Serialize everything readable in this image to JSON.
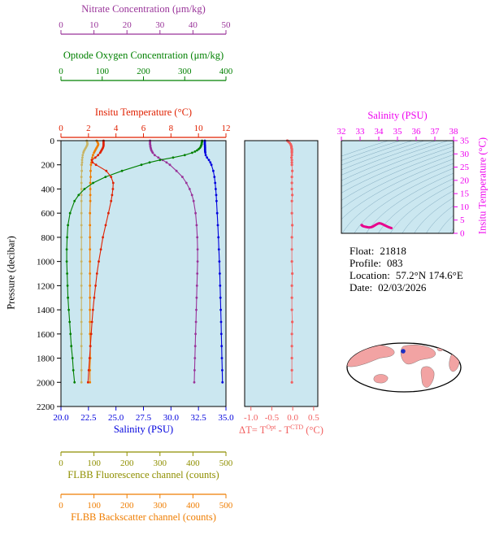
{
  "info": {
    "float_label": "Float:",
    "float_value": "21818",
    "profile_label": "Profile:",
    "profile_value": "083",
    "location_label": "Location:",
    "location_value": "57.2°N  174.6°E",
    "date_label": "Date:",
    "date_value": "02/03/2026"
  },
  "colors": {
    "nitrate": "#993399",
    "oxygen": "#008000",
    "temperature": "#e02000",
    "salinity": "#0000dd",
    "pressure": "#000000",
    "delta_t": "#f26060",
    "ts_axis": "#ee00ee",
    "ts_curve": "#e8008c",
    "fluor_axis": "#8f8f00",
    "fluor_curve": "#c8b464",
    "backscatter": "#ef7d00",
    "plot_bg": "#cbe7f0",
    "frame": "#000000",
    "isopycnal": "#7fa8bd",
    "map_land": "#f2a3a3",
    "map_coast": "#555555",
    "map_ocean": "#ffffff",
    "marker": "#1a2fc4"
  },
  "chart_data": [
    {
      "id": "profiles",
      "type": "line",
      "ylabel": "Pressure (decibar)",
      "ylim": [
        0,
        2200
      ],
      "yticks": [
        0,
        200,
        400,
        600,
        800,
        1000,
        1200,
        1400,
        1600,
        1800,
        2000,
        2200
      ],
      "pressure_levels": [
        0,
        10,
        20,
        30,
        40,
        50,
        60,
        70,
        80,
        90,
        100,
        120,
        140,
        160,
        180,
        200,
        250,
        300,
        350,
        400,
        450,
        500,
        600,
        700,
        800,
        900,
        1000,
        1100,
        1200,
        1300,
        1400,
        1500,
        1600,
        1700,
        1800,
        1900,
        2000
      ],
      "series": [
        {
          "name": "salinity",
          "title": "Salinity (PSU)",
          "xlim": [
            20.0,
            35.0
          ],
          "xticks": [
            "20.0",
            "22.5",
            "25.0",
            "27.5",
            "30.0",
            "32.5",
            "35.0"
          ],
          "values": [
            33.08,
            33.08,
            33.08,
            33.08,
            33.09,
            33.09,
            33.1,
            33.1,
            33.1,
            33.11,
            33.12,
            33.16,
            33.28,
            33.45,
            33.58,
            33.68,
            33.85,
            33.95,
            34.02,
            34.07,
            34.11,
            34.14,
            34.2,
            34.26,
            34.31,
            34.36,
            34.4,
            34.44,
            34.47,
            34.5,
            34.53,
            34.56,
            34.58,
            34.61,
            34.63,
            34.66,
            34.68
          ]
        },
        {
          "name": "temperature",
          "title": "Insitu Temperature (°C)",
          "xlim": [
            0,
            12
          ],
          "xticks": [
            0,
            2,
            4,
            6,
            8,
            10,
            12
          ],
          "values": [
            3.1,
            3.1,
            3.1,
            3.1,
            3.1,
            3.08,
            3.05,
            3.0,
            2.95,
            2.9,
            2.85,
            2.7,
            2.5,
            2.25,
            2.3,
            2.55,
            3.3,
            3.65,
            3.8,
            3.78,
            3.72,
            3.65,
            3.45,
            3.25,
            3.05,
            2.9,
            2.75,
            2.62,
            2.52,
            2.42,
            2.33,
            2.26,
            2.2,
            2.14,
            2.08,
            2.02,
            1.97
          ]
        },
        {
          "name": "oxygen",
          "title": "Optode Oxygen Concentration (μm/kg)",
          "xlim": [
            0,
            400
          ],
          "xticks": [
            0,
            100,
            200,
            300,
            400
          ],
          "values": [
            342,
            342,
            341,
            341,
            340,
            339,
            337,
            334,
            330,
            325,
            318,
            300,
            272,
            240,
            215,
            195,
            148,
            108,
            78,
            57,
            43,
            33,
            22,
            17,
            15,
            14,
            14,
            15,
            16,
            17,
            19,
            21,
            23,
            25,
            28,
            30,
            33
          ]
        },
        {
          "name": "nitrate",
          "title": "Nitrate Concentration (μm/kg)",
          "xlim": [
            0,
            50
          ],
          "xticks": [
            0,
            10,
            20,
            30,
            40,
            50
          ],
          "values": [
            27,
            27,
            27,
            27,
            27.1,
            27.1,
            27.2,
            27.3,
            27.4,
            27.6,
            27.8,
            28.4,
            29.5,
            30.8,
            32,
            33,
            35,
            36.8,
            38,
            39,
            39.7,
            40.2,
            40.8,
            41.1,
            41.3,
            41.4,
            41.4,
            41.3,
            41.2,
            41.1,
            41,
            40.9,
            40.8,
            40.7,
            40.6,
            40.5,
            40.4
          ]
        },
        {
          "name": "fluorescence",
          "title": "FLBB Fluorescence channel (counts)",
          "xlim": [
            0,
            500
          ],
          "xticks": [
            0,
            100,
            200,
            300,
            400,
            500
          ],
          "values": [
            78,
            79,
            80,
            80,
            79,
            77,
            75,
            73,
            71,
            69,
            68,
            66,
            65,
            64,
            64,
            63,
            63,
            62,
            62,
            62,
            62,
            62,
            62,
            62,
            62,
            62,
            62,
            62,
            62,
            62,
            62,
            62,
            62,
            62,
            62,
            62,
            62
          ]
        },
        {
          "name": "backscatter",
          "title": "FLBB Backscatter channel (counts)",
          "xlim": [
            0,
            500
          ],
          "xticks": [
            0,
            100,
            200,
            300,
            400,
            500
          ],
          "values": [
            108,
            110,
            112,
            113,
            112,
            110,
            108,
            106,
            104,
            102,
            100,
            97,
            95,
            93,
            92,
            91,
            90,
            90,
            89,
            89,
            89,
            89,
            88,
            88,
            88,
            88,
            88,
            88,
            88,
            88,
            88,
            88,
            88,
            89,
            89,
            88,
            88
          ]
        }
      ]
    },
    {
      "id": "delta_t",
      "type": "scatter",
      "title_parts": {
        "pre": "ΔT= T",
        "sup1": "Opt",
        "mid": " - T",
        "sup2": "CTD",
        "post": " (°C)"
      },
      "xlim": [
        -1.15,
        0.6
      ],
      "xticks": [
        "-1.0",
        "-0.5",
        "0.0",
        "0.5"
      ],
      "ylim": [
        0,
        2200
      ],
      "pressure_levels": [
        0,
        10,
        20,
        30,
        40,
        50,
        60,
        70,
        80,
        90,
        100,
        120,
        140,
        160,
        180,
        200,
        250,
        300,
        350,
        400,
        450,
        500,
        600,
        700,
        800,
        900,
        1000,
        1100,
        1200,
        1300,
        1400,
        1500,
        1600,
        1700,
        1800,
        1900,
        2000
      ],
      "values": [
        -0.13,
        -0.1,
        -0.07,
        -0.05,
        -0.04,
        -0.03,
        -0.03,
        -0.02,
        -0.02,
        -0.02,
        -0.02,
        -0.02,
        -0.03,
        -0.02,
        -0.02,
        -0.02,
        -0.01,
        -0.02,
        -0.02,
        -0.02,
        -0.01,
        -0.02,
        -0.02,
        -0.01,
        -0.02,
        -0.02,
        -0.02,
        -0.01,
        -0.02,
        -0.02,
        -0.02,
        -0.01,
        -0.02,
        -0.02,
        -0.02,
        -0.02,
        -0.02
      ]
    },
    {
      "id": "ts_diagram",
      "type": "line",
      "xtitle": "Salinity (PSU)",
      "ytitle": "Insitu Temperature (°C)",
      "xlim": [
        32,
        38
      ],
      "xticks": [
        32,
        33,
        34,
        35,
        36,
        37,
        38
      ],
      "ylim": [
        0,
        35
      ],
      "yticks": [
        0,
        5,
        10,
        15,
        20,
        25,
        30,
        35
      ],
      "sigma_levels": [
        19.5,
        20,
        20.5,
        21,
        21.5,
        22,
        22.5,
        23,
        23.5,
        24,
        24.5,
        25,
        25.5,
        26,
        26.5,
        27,
        27.5,
        28,
        28.5,
        29,
        29.5
      ],
      "points": [
        [
          33.08,
          3.1
        ],
        [
          33.08,
          3.1
        ],
        [
          33.08,
          3.1
        ],
        [
          33.08,
          3.1
        ],
        [
          33.09,
          3.1
        ],
        [
          33.09,
          3.08
        ],
        [
          33.1,
          3.05
        ],
        [
          33.1,
          3.0
        ],
        [
          33.1,
          2.95
        ],
        [
          33.11,
          2.9
        ],
        [
          33.12,
          2.85
        ],
        [
          33.16,
          2.7
        ],
        [
          33.28,
          2.5
        ],
        [
          33.45,
          2.25
        ],
        [
          33.58,
          2.3
        ],
        [
          33.68,
          2.55
        ],
        [
          33.85,
          3.3
        ],
        [
          33.95,
          3.65
        ],
        [
          34.02,
          3.8
        ],
        [
          34.07,
          3.78
        ],
        [
          34.11,
          3.72
        ],
        [
          34.14,
          3.65
        ],
        [
          34.2,
          3.45
        ],
        [
          34.26,
          3.25
        ],
        [
          34.31,
          3.05
        ],
        [
          34.36,
          2.9
        ],
        [
          34.4,
          2.75
        ],
        [
          34.44,
          2.62
        ],
        [
          34.47,
          2.52
        ],
        [
          34.5,
          2.42
        ],
        [
          34.53,
          2.33
        ],
        [
          34.56,
          2.26
        ],
        [
          34.58,
          2.2
        ],
        [
          34.61,
          2.14
        ],
        [
          34.63,
          2.08
        ],
        [
          34.66,
          2.02
        ],
        [
          34.68,
          1.97
        ]
      ]
    }
  ]
}
